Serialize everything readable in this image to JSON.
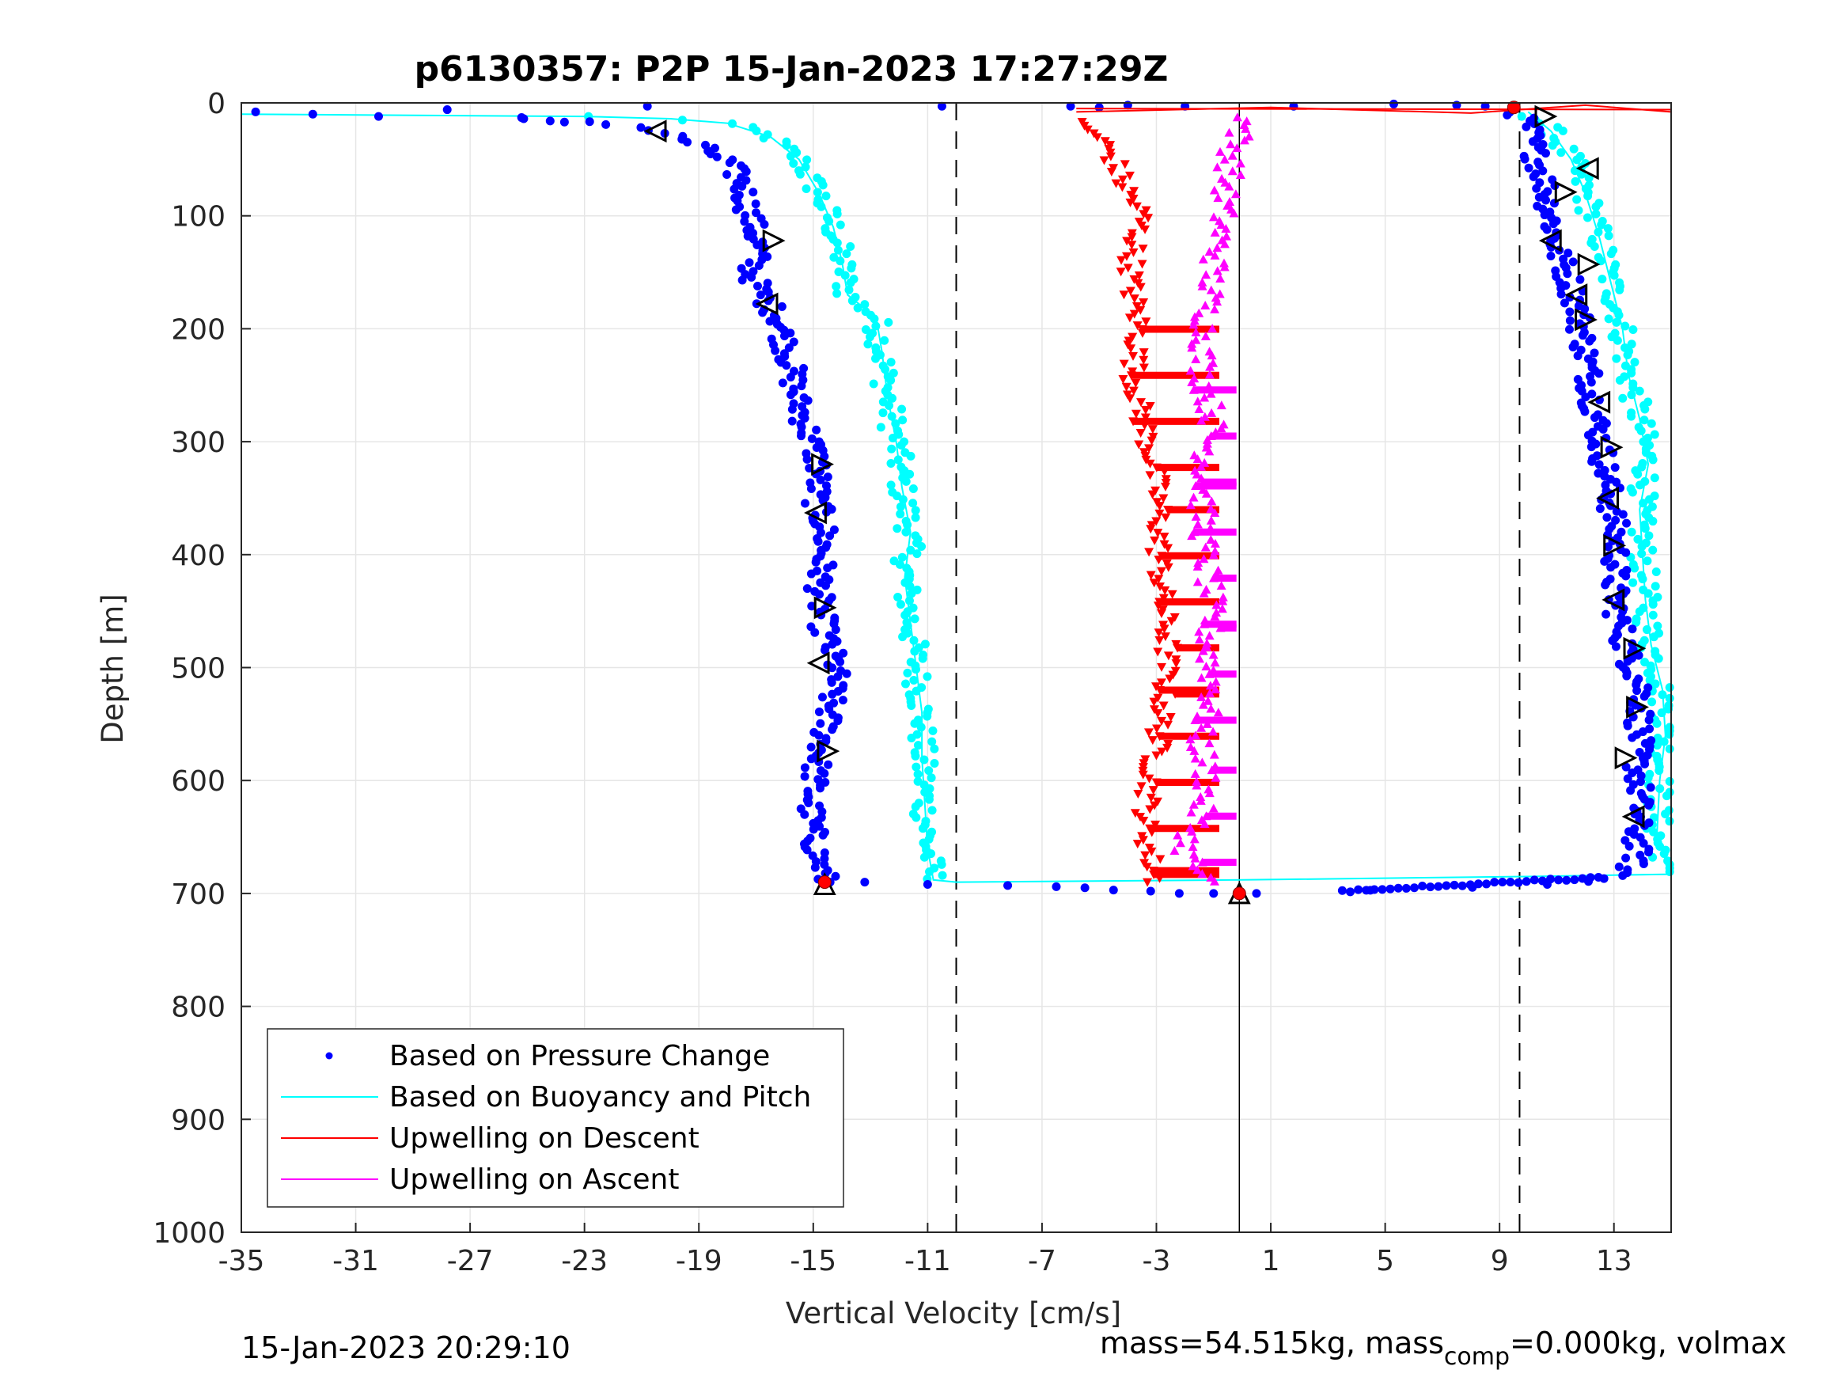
{
  "chart_data": {
    "type": "scatter",
    "title": "p6130357: P2P 15-Jan-2023 17:27:29Z",
    "xlabel": "Vertical Velocity [cm/s]",
    "ylabel": "Depth [m]",
    "xlim": [
      -35,
      15
    ],
    "ylim": [
      1000,
      0
    ],
    "y_reversed": true,
    "grid": true,
    "x_ticks": [
      "-35",
      "-31",
      "-27",
      "-23",
      "-19",
      "-15",
      "-11",
      "-7",
      "-3",
      "1",
      "5",
      "9",
      "13"
    ],
    "x_tick_values": [
      -35,
      -31,
      -27,
      -23,
      -19,
      -15,
      -11,
      -7,
      -3,
      1,
      5,
      9,
      13
    ],
    "y_ticks": [
      "0",
      "100",
      "200",
      "300",
      "400",
      "500",
      "600",
      "700",
      "800",
      "900",
      "1000"
    ],
    "y_tick_values": [
      0,
      100,
      200,
      300,
      400,
      500,
      600,
      700,
      800,
      900,
      1000
    ],
    "legend_position": "lower-left",
    "legend": [
      {
        "label": "Based on Pressure Change",
        "color": "#0000ff",
        "marker": "dot"
      },
      {
        "label": "Based on Buoyancy and Pitch",
        "color": "#00ffff",
        "marker": "line"
      },
      {
        "label": "Upwelling on Descent",
        "color": "#ff0000",
        "marker": "line"
      },
      {
        "label": "Upwelling on Ascent",
        "color": "#ff00ff",
        "marker": "line"
      }
    ],
    "reference_lines": {
      "dashed_x": [
        -10,
        9.7
      ],
      "solid_x": [
        -0.1
      ]
    },
    "series": [
      {
        "name": "Based on Pressure Change",
        "segment": "descent",
        "color": "#0000ff",
        "profile": [
          [
            -35,
            8
          ],
          [
            -31,
            9
          ],
          [
            -27,
            12
          ],
          [
            -25,
            14
          ],
          [
            -23,
            16
          ],
          [
            -21,
            22
          ],
          [
            -20,
            28
          ],
          [
            -19,
            38
          ],
          [
            -18,
            52
          ],
          [
            -17.5,
            70
          ],
          [
            -17.3,
            90
          ],
          [
            -17.1,
            110
          ],
          [
            -16.9,
            130
          ],
          [
            -17.2,
            150
          ],
          [
            -16.8,
            170
          ],
          [
            -16.2,
            190
          ],
          [
            -16.0,
            210
          ],
          [
            -15.8,
            230
          ],
          [
            -15.6,
            260
          ],
          [
            -15.2,
            290
          ],
          [
            -14.8,
            320
          ],
          [
            -14.9,
            350
          ],
          [
            -14.6,
            380
          ],
          [
            -14.7,
            410
          ],
          [
            -14.8,
            440
          ],
          [
            -14.6,
            470
          ],
          [
            -14.2,
            500
          ],
          [
            -14.4,
            530
          ],
          [
            -14.6,
            560
          ],
          [
            -14.9,
            590
          ],
          [
            -15.1,
            620
          ],
          [
            -15.0,
            650
          ],
          [
            -14.7,
            680
          ],
          [
            -14.5,
            692
          ]
        ]
      },
      {
        "name": "Based on Pressure Change",
        "segment": "ascent",
        "color": "#0000ff",
        "profile": [
          [
            3.5,
            698
          ],
          [
            7,
            696
          ],
          [
            10,
            693
          ],
          [
            12,
            690
          ],
          [
            13.2,
            685
          ],
          [
            13.8,
            670
          ],
          [
            13.8,
            640
          ],
          [
            13.9,
            610
          ],
          [
            13.8,
            580
          ],
          [
            13.9,
            550
          ],
          [
            14.0,
            520
          ],
          [
            13.5,
            490
          ],
          [
            13.2,
            460
          ],
          [
            13.0,
            430
          ],
          [
            13.1,
            400
          ],
          [
            13.0,
            370
          ],
          [
            12.8,
            340
          ],
          [
            12.6,
            310
          ],
          [
            12.4,
            280
          ],
          [
            12.2,
            250
          ],
          [
            12.0,
            220
          ],
          [
            11.8,
            190
          ],
          [
            11.5,
            160
          ],
          [
            11.0,
            130
          ],
          [
            10.8,
            100
          ],
          [
            10.6,
            70
          ],
          [
            10.2,
            40
          ],
          [
            10.0,
            20
          ],
          [
            9.5,
            5
          ]
        ]
      },
      {
        "name": "Based on Buoyancy and Pitch",
        "color": "#00ffff",
        "descent": [
          [
            -35,
            10
          ],
          [
            -23,
            12
          ],
          [
            -20,
            14
          ],
          [
            -18,
            18
          ],
          [
            -16.5,
            30
          ],
          [
            -15.5,
            50
          ],
          [
            -14.8,
            80
          ],
          [
            -14.3,
            110
          ],
          [
            -14.0,
            140
          ],
          [
            -13.8,
            170
          ],
          [
            -12.8,
            190
          ],
          [
            -12.6,
            220
          ],
          [
            -12.4,
            260
          ],
          [
            -12.1,
            300
          ],
          [
            -11.9,
            340
          ],
          [
            -11.6,
            380
          ],
          [
            -11.8,
            420
          ],
          [
            -11.6,
            460
          ],
          [
            -11.4,
            500
          ],
          [
            -11.2,
            540
          ],
          [
            -11.2,
            580
          ],
          [
            -11.1,
            620
          ],
          [
            -11.0,
            660
          ],
          [
            -10.8,
            688
          ],
          [
            -10.0,
            690
          ],
          [
            0,
            688
          ],
          [
            10,
            685
          ],
          [
            15,
            683
          ]
        ],
        "ascent": [
          [
            15,
            683
          ],
          [
            14.5,
            650
          ],
          [
            14.6,
            600
          ],
          [
            14.8,
            560
          ],
          [
            14.7,
            520
          ],
          [
            14.3,
            480
          ],
          [
            14.1,
            440
          ],
          [
            14.0,
            400
          ],
          [
            13.9,
            360
          ],
          [
            14.2,
            320
          ],
          [
            13.9,
            280
          ],
          [
            13.5,
            240
          ],
          [
            13.3,
            200
          ],
          [
            12.9,
            160
          ],
          [
            12.5,
            120
          ],
          [
            12.0,
            80
          ],
          [
            11.5,
            50
          ],
          [
            10.8,
            25
          ],
          [
            10.0,
            8
          ]
        ]
      },
      {
        "name": "Upwelling on Descent",
        "color": "#ff0000",
        "profile": [
          [
            -6.0,
            15
          ],
          [
            -5.0,
            30
          ],
          [
            -4.5,
            50
          ],
          [
            -4.2,
            70
          ],
          [
            -3.5,
            100
          ],
          [
            -3.8,
            130
          ],
          [
            -3.9,
            160
          ],
          [
            -3.6,
            200
          ],
          [
            -3.8,
            240
          ],
          [
            -3.5,
            280
          ],
          [
            -3.1,
            320
          ],
          [
            -2.9,
            360
          ],
          [
            -2.9,
            400
          ],
          [
            -2.8,
            440
          ],
          [
            -2.6,
            480
          ],
          [
            -2.7,
            520
          ],
          [
            -2.9,
            560
          ],
          [
            -3.2,
            600
          ],
          [
            -3.4,
            640
          ],
          [
            -3.2,
            670
          ],
          [
            -3.0,
            690
          ]
        ],
        "surface_spike": [
          [
            -5.8,
            5
          ],
          [
            15,
            6
          ]
        ]
      },
      {
        "name": "Upwelling on Ascent",
        "color": "#ff00ff",
        "profile": [
          [
            -1.3,
            690
          ],
          [
            -2.0,
            660
          ],
          [
            -1.5,
            630
          ],
          [
            -1.2,
            600
          ],
          [
            -1.5,
            560
          ],
          [
            -1.0,
            520
          ],
          [
            -1.2,
            480
          ],
          [
            -1.1,
            440
          ],
          [
            -1.3,
            400
          ],
          [
            -1.4,
            360
          ],
          [
            -1.3,
            320
          ],
          [
            -1.0,
            280
          ],
          [
            -1.4,
            240
          ],
          [
            -1.3,
            200
          ],
          [
            -1.1,
            160
          ],
          [
            -0.8,
            120
          ],
          [
            -0.6,
            80
          ],
          [
            -0.3,
            40
          ],
          [
            0.2,
            10
          ]
        ]
      }
    ],
    "triangle_markers": [
      {
        "dir": "left",
        "x": -20.5,
        "y": 25
      },
      {
        "dir": "right",
        "x": -16.4,
        "y": 122
      },
      {
        "dir": "left",
        "x": -16.6,
        "y": 178
      },
      {
        "dir": "right",
        "x": -14.7,
        "y": 320
      },
      {
        "dir": "left",
        "x": -14.9,
        "y": 363
      },
      {
        "dir": "right",
        "x": -14.6,
        "y": 447
      },
      {
        "dir": "left",
        "x": -14.8,
        "y": 496
      },
      {
        "dir": "right",
        "x": -14.5,
        "y": 574
      },
      {
        "dir": "right",
        "x": 10.6,
        "y": 12
      },
      {
        "dir": "left",
        "x": 12.1,
        "y": 58
      },
      {
        "dir": "right",
        "x": 11.3,
        "y": 79
      },
      {
        "dir": "left",
        "x": 10.8,
        "y": 122
      },
      {
        "dir": "right",
        "x": 12.1,
        "y": 143
      },
      {
        "dir": "left",
        "x": 11.7,
        "y": 170
      },
      {
        "dir": "right",
        "x": 12.0,
        "y": 192
      },
      {
        "dir": "left",
        "x": 12.5,
        "y": 265
      },
      {
        "dir": "right",
        "x": 12.9,
        "y": 305
      },
      {
        "dir": "left",
        "x": 12.8,
        "y": 350
      },
      {
        "dir": "right",
        "x": 13.0,
        "y": 392
      },
      {
        "dir": "left",
        "x": 13.0,
        "y": 440
      },
      {
        "dir": "right",
        "x": 13.7,
        "y": 483
      },
      {
        "dir": "right",
        "x": 13.8,
        "y": 535
      },
      {
        "dir": "right",
        "x": 13.4,
        "y": 580
      },
      {
        "dir": "left",
        "x": 13.7,
        "y": 632
      },
      {
        "dir": "up",
        "x": -14.6,
        "y": 692
      },
      {
        "dir": "up",
        "x": -0.1,
        "y": 700
      }
    ],
    "red_circles": [
      {
        "x": -14.6,
        "y": 690
      },
      {
        "x": -0.1,
        "y": 700
      },
      {
        "x": 9.5,
        "y": 4
      }
    ]
  },
  "footer": {
    "timestamp": "15-Jan-2023 20:29:10",
    "mass_text_a": "mass=54.515kg, mass",
    "mass_sub": "comp",
    "mass_text_b": "=0.000kg, volmax"
  }
}
